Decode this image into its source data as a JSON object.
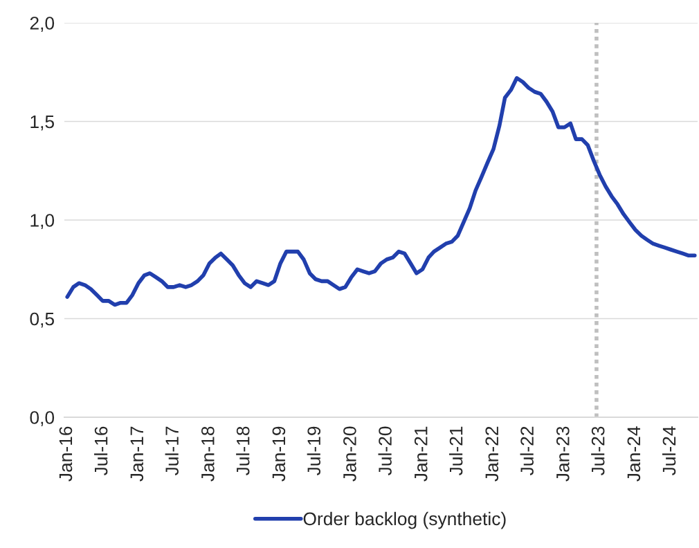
{
  "chart_data": {
    "type": "line",
    "x": [
      "2016-01",
      "2016-02",
      "2016-03",
      "2016-04",
      "2016-05",
      "2016-06",
      "2016-07",
      "2016-08",
      "2016-09",
      "2016-10",
      "2016-11",
      "2016-12",
      "2017-01",
      "2017-02",
      "2017-03",
      "2017-04",
      "2017-05",
      "2017-06",
      "2017-07",
      "2017-08",
      "2017-09",
      "2017-10",
      "2017-11",
      "2017-12",
      "2018-01",
      "2018-02",
      "2018-03",
      "2018-04",
      "2018-05",
      "2018-06",
      "2018-07",
      "2018-08",
      "2018-09",
      "2018-10",
      "2018-11",
      "2018-12",
      "2019-01",
      "2019-02",
      "2019-03",
      "2019-04",
      "2019-05",
      "2019-06",
      "2019-07",
      "2019-08",
      "2019-09",
      "2019-10",
      "2019-11",
      "2019-12",
      "2020-01",
      "2020-02",
      "2020-03",
      "2020-04",
      "2020-05",
      "2020-06",
      "2020-07",
      "2020-08",
      "2020-09",
      "2020-10",
      "2020-11",
      "2020-12",
      "2021-01",
      "2021-02",
      "2021-03",
      "2021-04",
      "2021-05",
      "2021-06",
      "2021-07",
      "2021-08",
      "2021-09",
      "2021-10",
      "2021-11",
      "2021-12",
      "2022-01",
      "2022-02",
      "2022-03",
      "2022-04",
      "2022-05",
      "2022-06",
      "2022-07",
      "2022-08",
      "2022-09",
      "2022-10",
      "2022-11",
      "2022-12",
      "2023-01",
      "2023-02",
      "2023-03",
      "2023-04",
      "2023-05",
      "2023-06",
      "2023-07",
      "2023-08",
      "2023-09",
      "2023-10",
      "2023-11",
      "2023-12",
      "2024-01",
      "2024-02",
      "2024-03",
      "2024-04",
      "2024-05",
      "2024-06",
      "2024-07",
      "2024-08",
      "2024-09",
      "2024-10",
      "2024-11"
    ],
    "series": [
      {
        "name": "Order backlog (synthetic)",
        "color": "#213fad",
        "values": [
          0.61,
          0.66,
          0.68,
          0.67,
          0.65,
          0.62,
          0.59,
          0.59,
          0.57,
          0.58,
          0.58,
          0.62,
          0.68,
          0.72,
          0.73,
          0.71,
          0.69,
          0.66,
          0.66,
          0.67,
          0.66,
          0.67,
          0.69,
          0.72,
          0.78,
          0.81,
          0.83,
          0.8,
          0.77,
          0.72,
          0.68,
          0.66,
          0.69,
          0.68,
          0.67,
          0.69,
          0.78,
          0.84,
          0.84,
          0.84,
          0.8,
          0.73,
          0.7,
          0.69,
          0.69,
          0.67,
          0.65,
          0.66,
          0.71,
          0.75,
          0.74,
          0.73,
          0.74,
          0.78,
          0.8,
          0.81,
          0.84,
          0.83,
          0.78,
          0.73,
          0.75,
          0.81,
          0.84,
          0.86,
          0.88,
          0.89,
          0.92,
          0.99,
          1.06,
          1.15,
          1.22,
          1.29,
          1.36,
          1.48,
          1.62,
          1.66,
          1.72,
          1.7,
          1.67,
          1.65,
          1.64,
          1.6,
          1.55,
          1.47,
          1.47,
          1.49,
          1.41,
          1.41,
          1.38,
          1.3,
          1.23,
          1.17,
          1.12,
          1.08,
          1.03,
          0.99,
          0.95,
          0.92,
          0.9,
          0.88,
          0.87,
          0.86,
          0.85,
          0.84,
          0.83,
          0.82,
          0.82
        ]
      }
    ],
    "xlim": [
      "2015-12-17",
      "2024-11-16"
    ],
    "xticks": [
      {
        "value": "2016-01",
        "label": "Jan-16"
      },
      {
        "value": "2016-07",
        "label": "Jul-16"
      },
      {
        "value": "2017-01",
        "label": "Jan-17"
      },
      {
        "value": "2017-07",
        "label": "Jul-17"
      },
      {
        "value": "2018-01",
        "label": "Jan-18"
      },
      {
        "value": "2018-07",
        "label": "Jul-18"
      },
      {
        "value": "2019-01",
        "label": "Jan-19"
      },
      {
        "value": "2019-07",
        "label": "Jul-19"
      },
      {
        "value": "2020-01",
        "label": "Jan-20"
      },
      {
        "value": "2020-07",
        "label": "Jul-20"
      },
      {
        "value": "2021-01",
        "label": "Jan-21"
      },
      {
        "value": "2021-07",
        "label": "Jul-21"
      },
      {
        "value": "2022-01",
        "label": "Jan-22"
      },
      {
        "value": "2022-07",
        "label": "Jul-22"
      },
      {
        "value": "2023-01",
        "label": "Jan-23"
      },
      {
        "value": "2023-07",
        "label": "Jul-23"
      },
      {
        "value": "2024-01",
        "label": "Jan-24"
      },
      {
        "value": "2024-07",
        "label": "Jul-24"
      }
    ],
    "ylim": [
      0,
      2
    ],
    "yticks": [
      {
        "value": 0,
        "label": "0,0"
      },
      {
        "value": 0.5,
        "label": "0,5"
      },
      {
        "value": 1,
        "label": "1,0"
      },
      {
        "value": 1.5,
        "label": "1,5"
      },
      {
        "value": 2,
        "label": "2,0"
      }
    ],
    "ref_lines": [
      {
        "axis": "x",
        "value": "2023-06-15",
        "color": "#bfbfbf",
        "line_style": "dotted"
      }
    ],
    "grid": "y",
    "legend": "bottom",
    "line_style": "solid",
    "marker": "none"
  }
}
